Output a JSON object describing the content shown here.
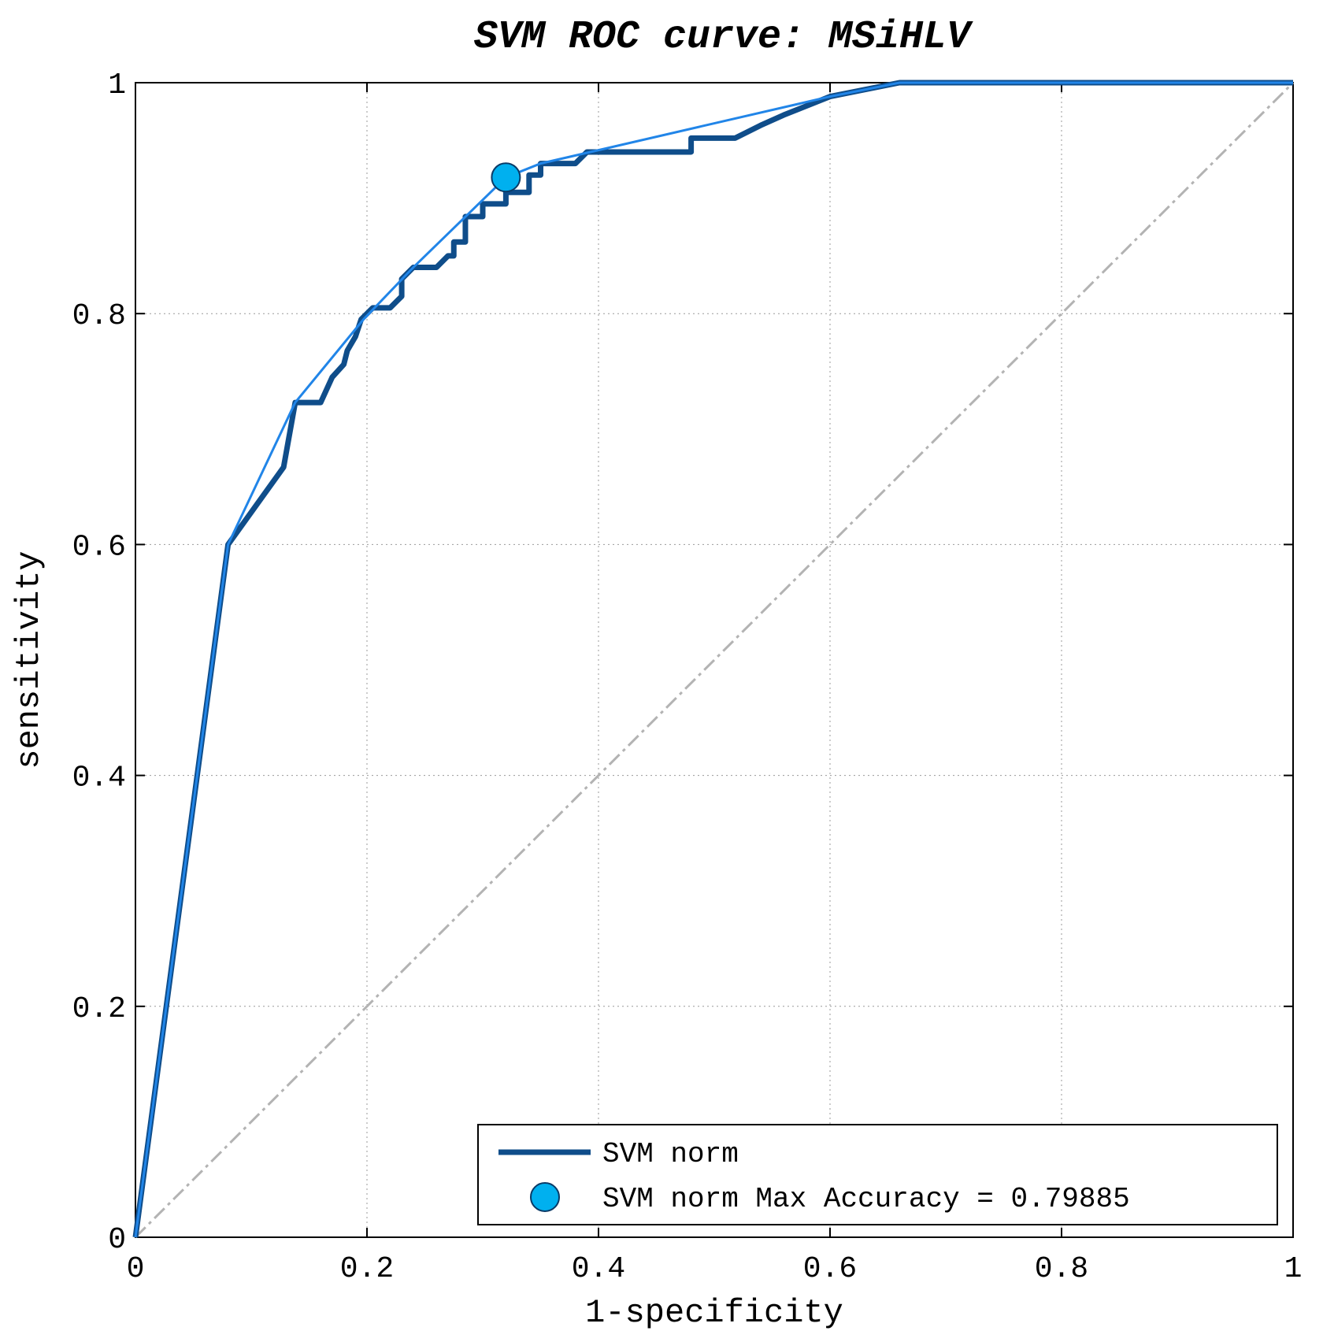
{
  "chart_data": {
    "type": "line",
    "title": "SVM ROC curve: MSiHLV",
    "xlabel": "1-specificity",
    "ylabel": "sensitivity",
    "xlim": [
      0,
      1
    ],
    "ylim": [
      0,
      1
    ],
    "grid": true,
    "xticks": [
      0,
      0.2,
      0.4,
      0.6,
      0.8,
      1
    ],
    "yticks": [
      0,
      0.2,
      0.4,
      0.6,
      0.8,
      1
    ],
    "xtick_labels": [
      "0",
      "0.2",
      "0.4",
      "0.6",
      "0.8",
      "1"
    ],
    "ytick_labels": [
      "0",
      "0.2",
      "0.4",
      "0.6",
      "0.8",
      "1"
    ],
    "legend_position": "bottom-right",
    "colors": {
      "roc": "#0f4d8a",
      "hull": "#2185e8",
      "marker": "#00b0ef",
      "diagonal": "#b3b3b3",
      "grid": "#999999"
    },
    "series": [
      {
        "name": "SVM norm",
        "style": "thick-line",
        "x": [
          0,
          0.08,
          0.128,
          0.138,
          0.16,
          0.17,
          0.18,
          0.183,
          0.19,
          0.195,
          0.205,
          0.22,
          0.23,
          0.23,
          0.24,
          0.26,
          0.27,
          0.275,
          0.275,
          0.285,
          0.285,
          0.3,
          0.3,
          0.32,
          0.32,
          0.34,
          0.34,
          0.35,
          0.35,
          0.38,
          0.39,
          0.47,
          0.48,
          0.48,
          0.518,
          0.54,
          0.56,
          0.6,
          0.66,
          1
        ],
        "y": [
          0,
          0.6,
          0.667,
          0.723,
          0.723,
          0.745,
          0.756,
          0.768,
          0.78,
          0.795,
          0.805,
          0.805,
          0.815,
          0.83,
          0.84,
          0.84,
          0.85,
          0.85,
          0.862,
          0.862,
          0.884,
          0.884,
          0.895,
          0.895,
          0.905,
          0.905,
          0.92,
          0.92,
          0.93,
          0.93,
          0.94,
          0.94,
          0.94,
          0.952,
          0.952,
          0.963,
          0.972,
          0.988,
          1,
          1
        ]
      },
      {
        "name": "convex hull",
        "style": "thin-line",
        "x": [
          0,
          0.08,
          0.138,
          0.197,
          0.24,
          0.32,
          0.35,
          0.6,
          0.66,
          1
        ],
        "y": [
          0,
          0.6,
          0.723,
          0.795,
          0.84,
          0.918,
          0.93,
          0.988,
          1,
          1
        ]
      },
      {
        "name": "chance",
        "style": "dash-dot",
        "x": [
          0,
          1
        ],
        "y": [
          0,
          1
        ]
      }
    ],
    "marker": {
      "name": "SVM norm Max Accuracy = 0.79885",
      "x": 0.32,
      "y": 0.918
    },
    "legend": [
      {
        "label": "SVM norm",
        "kind": "line"
      },
      {
        "label": "SVM norm Max Accuracy = 0.79885",
        "kind": "marker"
      }
    ]
  }
}
